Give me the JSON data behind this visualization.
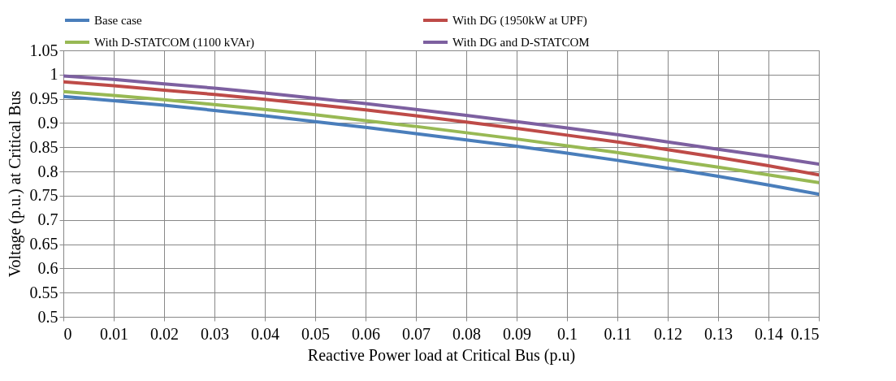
{
  "chart_data": {
    "type": "line",
    "xlabel": "Reactive Power load at Critical Bus (p.u)",
    "ylabel": "Voltage (p.u.) at Critical Bus",
    "x": [
      0,
      0.01,
      0.02,
      0.03,
      0.04,
      0.05,
      0.06,
      0.07,
      0.08,
      0.09,
      0.1,
      0.11,
      0.12,
      0.13,
      0.14,
      0.15
    ],
    "series": [
      {
        "name": "Base case",
        "color": "#4a7ebb",
        "values": [
          0.955,
          0.946,
          0.937,
          0.926,
          0.915,
          0.903,
          0.891,
          0.878,
          0.865,
          0.852,
          0.838,
          0.823,
          0.807,
          0.79,
          0.772,
          0.753
        ]
      },
      {
        "name": "With DG (1950kW at UPF)",
        "color": "#be4b48",
        "values": [
          0.985,
          0.977,
          0.968,
          0.959,
          0.949,
          0.938,
          0.927,
          0.915,
          0.902,
          0.889,
          0.875,
          0.861,
          0.845,
          0.829,
          0.812,
          0.793
        ]
      },
      {
        "name": "With D-STATCOM (1100 kVAr)",
        "color": "#98b954",
        "values": [
          0.965,
          0.957,
          0.948,
          0.938,
          0.928,
          0.917,
          0.905,
          0.893,
          0.88,
          0.867,
          0.853,
          0.839,
          0.824,
          0.809,
          0.793,
          0.777
        ]
      },
      {
        "name": "With DG and D-STATCOM",
        "color": "#7d60a0",
        "values": [
          0.997,
          0.99,
          0.981,
          0.972,
          0.962,
          0.951,
          0.94,
          0.928,
          0.916,
          0.903,
          0.89,
          0.876,
          0.861,
          0.846,
          0.831,
          0.815
        ]
      }
    ],
    "xlim": [
      0,
      0.15
    ],
    "xticks": [
      0,
      0.01,
      0.02,
      0.03,
      0.04,
      0.05,
      0.06,
      0.07,
      0.08,
      0.09,
      0.1,
      0.11,
      0.12,
      0.13,
      0.14,
      0.15
    ],
    "ylim": [
      0.5,
      1.05
    ],
    "yticks": [
      0.5,
      0.55,
      0.6,
      0.65,
      0.7,
      0.75,
      0.8,
      0.85,
      0.9,
      0.95,
      1,
      1.05
    ],
    "grid": true,
    "legend": "top",
    "marker": "none",
    "line_style": "solid"
  }
}
